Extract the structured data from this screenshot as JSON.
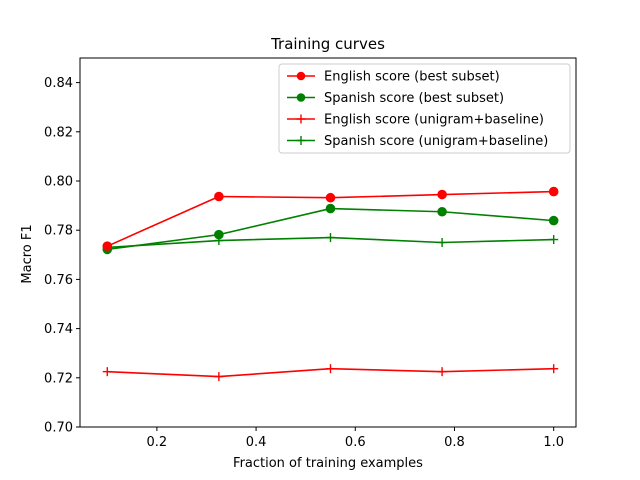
{
  "chart_data": {
    "type": "line",
    "title": "Training curves",
    "xlabel": "Fraction of training examples",
    "ylabel": "Macro F1",
    "xlim": [
      0.045,
      1.045
    ],
    "ylim": [
      0.7,
      0.85
    ],
    "xticks": [
      0.2,
      0.4,
      0.6,
      0.8,
      1.0
    ],
    "xtick_labels": [
      "0.2",
      "0.4",
      "0.6",
      "0.8",
      "1.0"
    ],
    "yticks": [
      0.7,
      0.72,
      0.74,
      0.76,
      0.78,
      0.8,
      0.82,
      0.84
    ],
    "ytick_labels": [
      "0.70",
      "0.72",
      "0.74",
      "0.76",
      "0.78",
      "0.80",
      "0.82",
      "0.84"
    ],
    "grid": false,
    "legend_position": "top-right",
    "x": [
      0.1,
      0.325,
      0.55,
      0.775,
      1.0
    ],
    "series": [
      {
        "name": "English score (best subset)",
        "color": "#ff0000",
        "marker": "circle",
        "values": [
          0.7735,
          0.7937,
          0.7932,
          0.7945,
          0.7957
        ]
      },
      {
        "name": "Spanish score (best subset)",
        "color": "#008000",
        "marker": "circle",
        "values": [
          0.7722,
          0.7782,
          0.7888,
          0.7875,
          0.7839
        ]
      },
      {
        "name": "English score (unigram+baseline)",
        "color": "#ff0000",
        "marker": "plus",
        "values": [
          0.7225,
          0.7205,
          0.7237,
          0.7225,
          0.7237
        ]
      },
      {
        "name": "Spanish score (unigram+baseline)",
        "color": "#008000",
        "marker": "plus",
        "values": [
          0.773,
          0.7758,
          0.777,
          0.775,
          0.7762
        ]
      }
    ]
  }
}
